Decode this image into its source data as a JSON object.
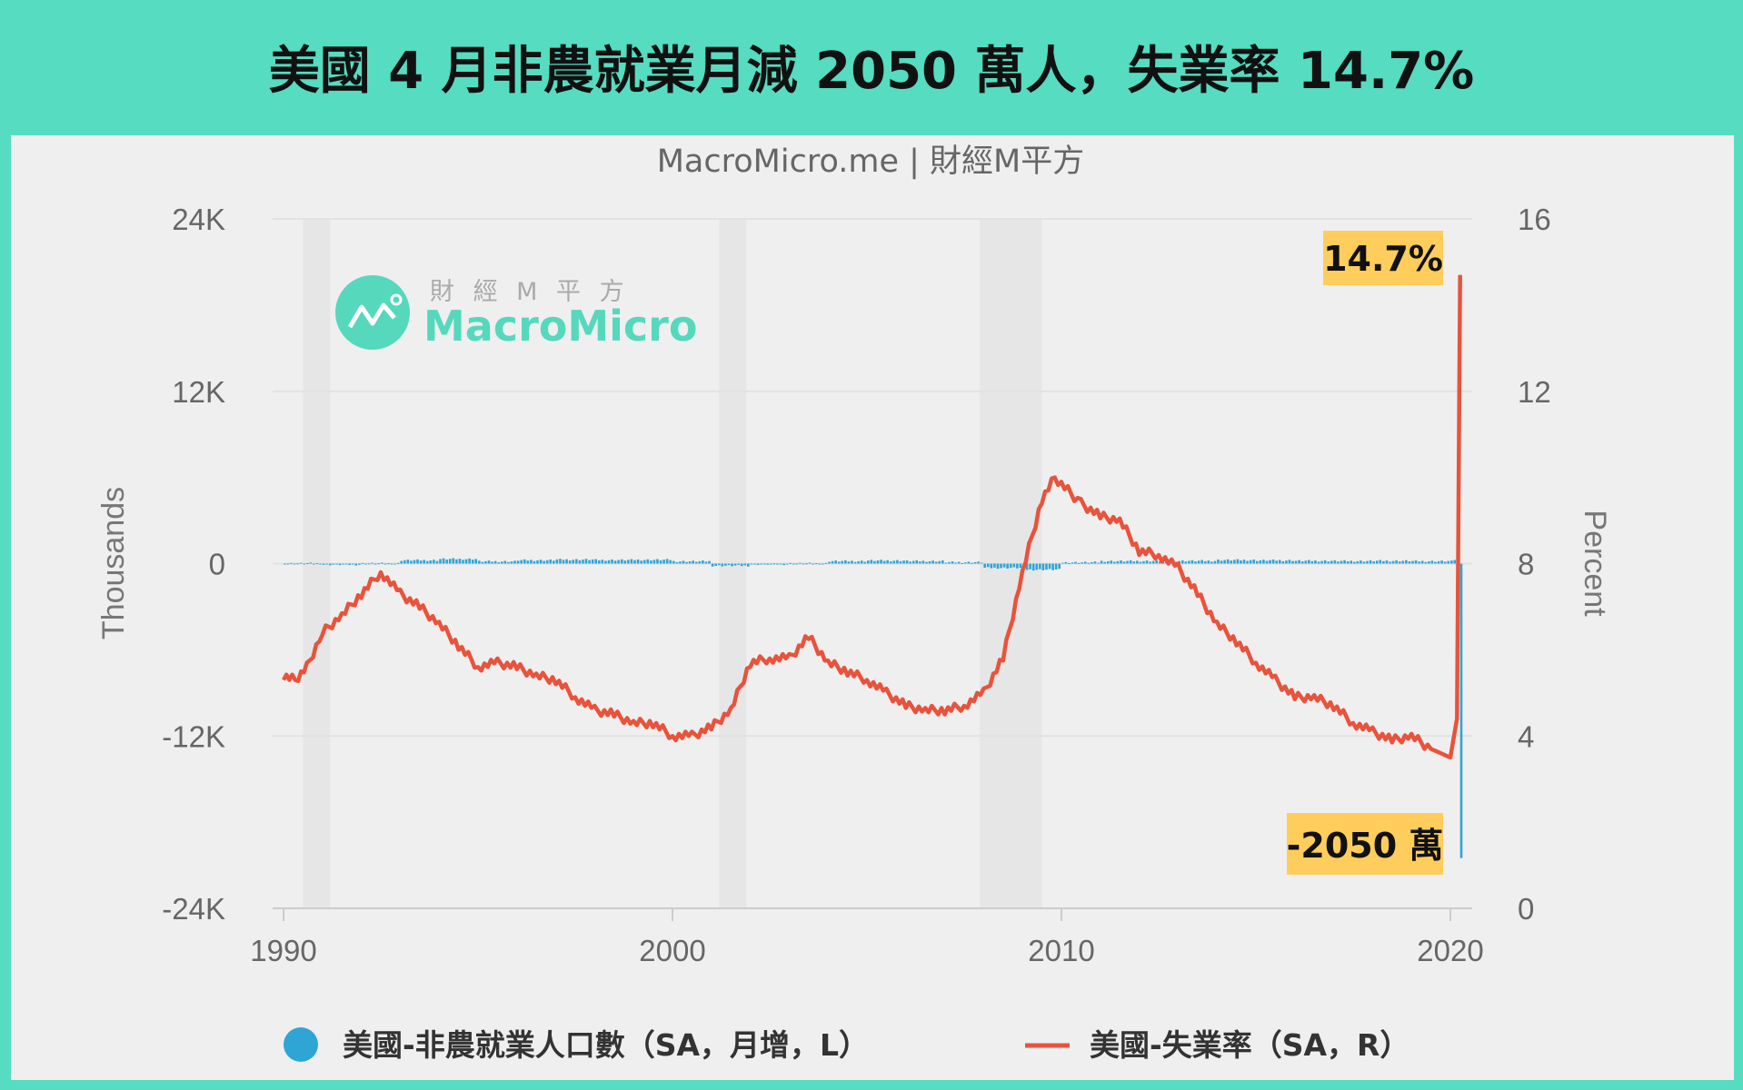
{
  "title": "美國 4 月非農就業月減 2050 萬人，失業率 14.7%",
  "colors": {
    "frame": "#56dcc0",
    "panel": "#efefef",
    "payroll": "#2fa5d6",
    "unemployment": "#e8533c",
    "annotation_bg": "#ffcd5c",
    "logo": "#56d8bd"
  },
  "logo": {
    "cn": "財 經 M 平 方",
    "en": "MacroMicro"
  },
  "chart_data": {
    "type": "bar+line",
    "subtitle": "MacroMicro.me | 財經M平方",
    "ylabel_left": "Thousands",
    "ylabel_right": "Percent",
    "ylim_left": [
      -24000,
      24000
    ],
    "ylim_right": [
      0,
      16
    ],
    "xlim": [
      1990,
      2020.6
    ],
    "left_ticks": [
      "24K",
      "12K",
      "0",
      "-12K",
      "-24K"
    ],
    "left_tick_values": [
      24000,
      12000,
      0,
      -12000,
      -24000
    ],
    "right_ticks": [
      "16",
      "12",
      "8",
      "4",
      "0"
    ],
    "right_tick_values": [
      16,
      12,
      8,
      4,
      0
    ],
    "x_ticks": [
      "1990",
      "2000",
      "2010",
      "2020"
    ],
    "x_tick_values": [
      1990,
      2000,
      2010,
      2020
    ],
    "grid": true,
    "recessions": [
      [
        1990.5,
        1991.2
      ],
      [
        2001.2,
        2001.9
      ],
      [
        2007.9,
        2009.5
      ]
    ],
    "legend": [
      {
        "name": "美國-非農就業人口數（SA，月增，L）",
        "marker": "circle"
      },
      {
        "name": "美國-失業率（SA，R）",
        "marker": "line"
      }
    ],
    "legend_position": "bottom-center",
    "series": [
      {
        "name": "美國-非農就業人口數（SA，月增，L）",
        "type": "bar",
        "axis": "left",
        "annual_avg_monthly_change_1990_2019": [
          16,
          -72,
          10,
          236,
          321,
          154,
          236,
          280,
          251,
          264,
          158,
          -146,
          -43,
          9,
          172,
          212,
          175,
          96,
          -297,
          -422,
          86,
          173,
          181,
          192,
          250,
          227,
          195,
          179,
          193,
          168
        ],
        "points_2020": [
          [
            2020.0,
            214
          ],
          [
            2020.08,
            251
          ],
          [
            2020.17,
            -1373
          ],
          [
            2020.25,
            -20500
          ]
        ]
      },
      {
        "name": "美國-失業率（SA，R）",
        "type": "line",
        "axis": "right",
        "points": [
          [
            1990.0,
            5.4
          ],
          [
            1990.3,
            5.3
          ],
          [
            1990.6,
            5.6
          ],
          [
            1991.0,
            6.4
          ],
          [
            1991.5,
            6.8
          ],
          [
            1992.0,
            7.3
          ],
          [
            1992.5,
            7.8
          ],
          [
            1993.0,
            7.3
          ],
          [
            1993.5,
            7.0
          ],
          [
            1994.0,
            6.6
          ],
          [
            1994.5,
            6.1
          ],
          [
            1995.0,
            5.6
          ],
          [
            1995.5,
            5.7
          ],
          [
            1996.0,
            5.6
          ],
          [
            1996.5,
            5.4
          ],
          [
            1997.0,
            5.3
          ],
          [
            1997.5,
            4.9
          ],
          [
            1998.0,
            4.6
          ],
          [
            1998.5,
            4.5
          ],
          [
            1999.0,
            4.3
          ],
          [
            1999.5,
            4.3
          ],
          [
            2000.0,
            4.0
          ],
          [
            2000.5,
            4.0
          ],
          [
            2001.0,
            4.2
          ],
          [
            2001.5,
            4.6
          ],
          [
            2002.0,
            5.7
          ],
          [
            2002.5,
            5.8
          ],
          [
            2003.0,
            5.8
          ],
          [
            2003.5,
            6.3
          ],
          [
            2004.0,
            5.7
          ],
          [
            2004.5,
            5.5
          ],
          [
            2005.0,
            5.3
          ],
          [
            2005.5,
            5.0
          ],
          [
            2006.0,
            4.7
          ],
          [
            2006.5,
            4.6
          ],
          [
            2007.0,
            4.6
          ],
          [
            2007.5,
            4.7
          ],
          [
            2008.0,
            5.0
          ],
          [
            2008.5,
            5.8
          ],
          [
            2009.0,
            7.8
          ],
          [
            2009.5,
            9.5
          ],
          [
            2009.83,
            10.0
          ],
          [
            2010.5,
            9.4
          ],
          [
            2011.0,
            9.1
          ],
          [
            2011.5,
            9.0
          ],
          [
            2012.0,
            8.3
          ],
          [
            2012.5,
            8.2
          ],
          [
            2013.0,
            7.9
          ],
          [
            2013.5,
            7.3
          ],
          [
            2014.0,
            6.6
          ],
          [
            2014.5,
            6.2
          ],
          [
            2015.0,
            5.7
          ],
          [
            2015.5,
            5.3
          ],
          [
            2016.0,
            4.9
          ],
          [
            2016.5,
            4.9
          ],
          [
            2017.0,
            4.7
          ],
          [
            2017.5,
            4.3
          ],
          [
            2018.0,
            4.1
          ],
          [
            2018.5,
            3.9
          ],
          [
            2019.0,
            4.0
          ],
          [
            2019.5,
            3.7
          ],
          [
            2020.0,
            3.5
          ],
          [
            2020.17,
            4.4
          ],
          [
            2020.25,
            14.7
          ]
        ]
      }
    ],
    "annotations": [
      {
        "text": "14.7%",
        "series": "unemployment",
        "value": 14.7
      },
      {
        "text": "-2050 萬",
        "series": "payroll",
        "value": -20500
      }
    ]
  }
}
